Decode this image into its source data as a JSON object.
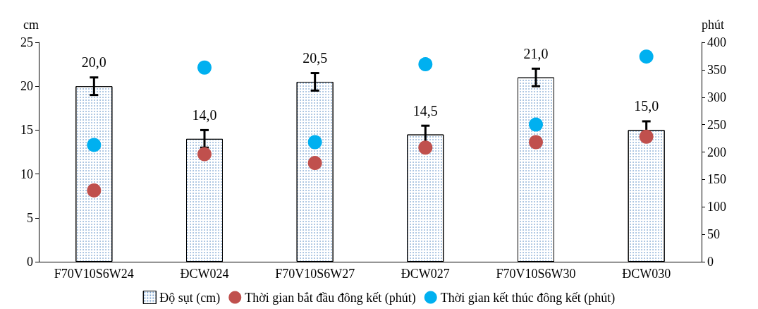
{
  "chart_data": {
    "type": "bar",
    "ylabel": "cm",
    "y2label": "phút",
    "categories": [
      "F70V10S6W24",
      "ĐCW024",
      "F70V10S6W27",
      "ĐCW027",
      "F70V10S6W30",
      "ĐCW030"
    ],
    "series": [
      {
        "name": "Độ sụt (cm)",
        "color": "#ffffff",
        "values": [
          20.0,
          14.0,
          20.5,
          14.5,
          21.0,
          15.0
        ],
        "errors": [
          1,
          1,
          1,
          1,
          1,
          1
        ],
        "value_labels": [
          "20,0",
          "14,0",
          "20,5",
          "14,5",
          "21,0",
          "15,0"
        ]
      },
      {
        "name": "Thời gian bắt đầu đông kết (phút)",
        "type": "scatter",
        "axis": "y2",
        "color": "#c0504d",
        "values": [
          130,
          196,
          180,
          208,
          218,
          228
        ]
      },
      {
        "name": "Thời gian kết thúc đông kết (phút)",
        "type": "scatter",
        "axis": "y2",
        "color": "#00b0f0",
        "values": [
          213,
          354,
          218,
          360,
          250,
          374
        ]
      }
    ],
    "ylim": [
      0,
      25
    ],
    "yticks": [
      0,
      5,
      10,
      15,
      20,
      25
    ],
    "y2lim": [
      0,
      400
    ],
    "y2ticks": [
      0,
      50,
      100,
      150,
      200,
      250,
      300,
      350,
      400
    ],
    "grid": false,
    "legend": "bottom",
    "marker": "circle"
  }
}
